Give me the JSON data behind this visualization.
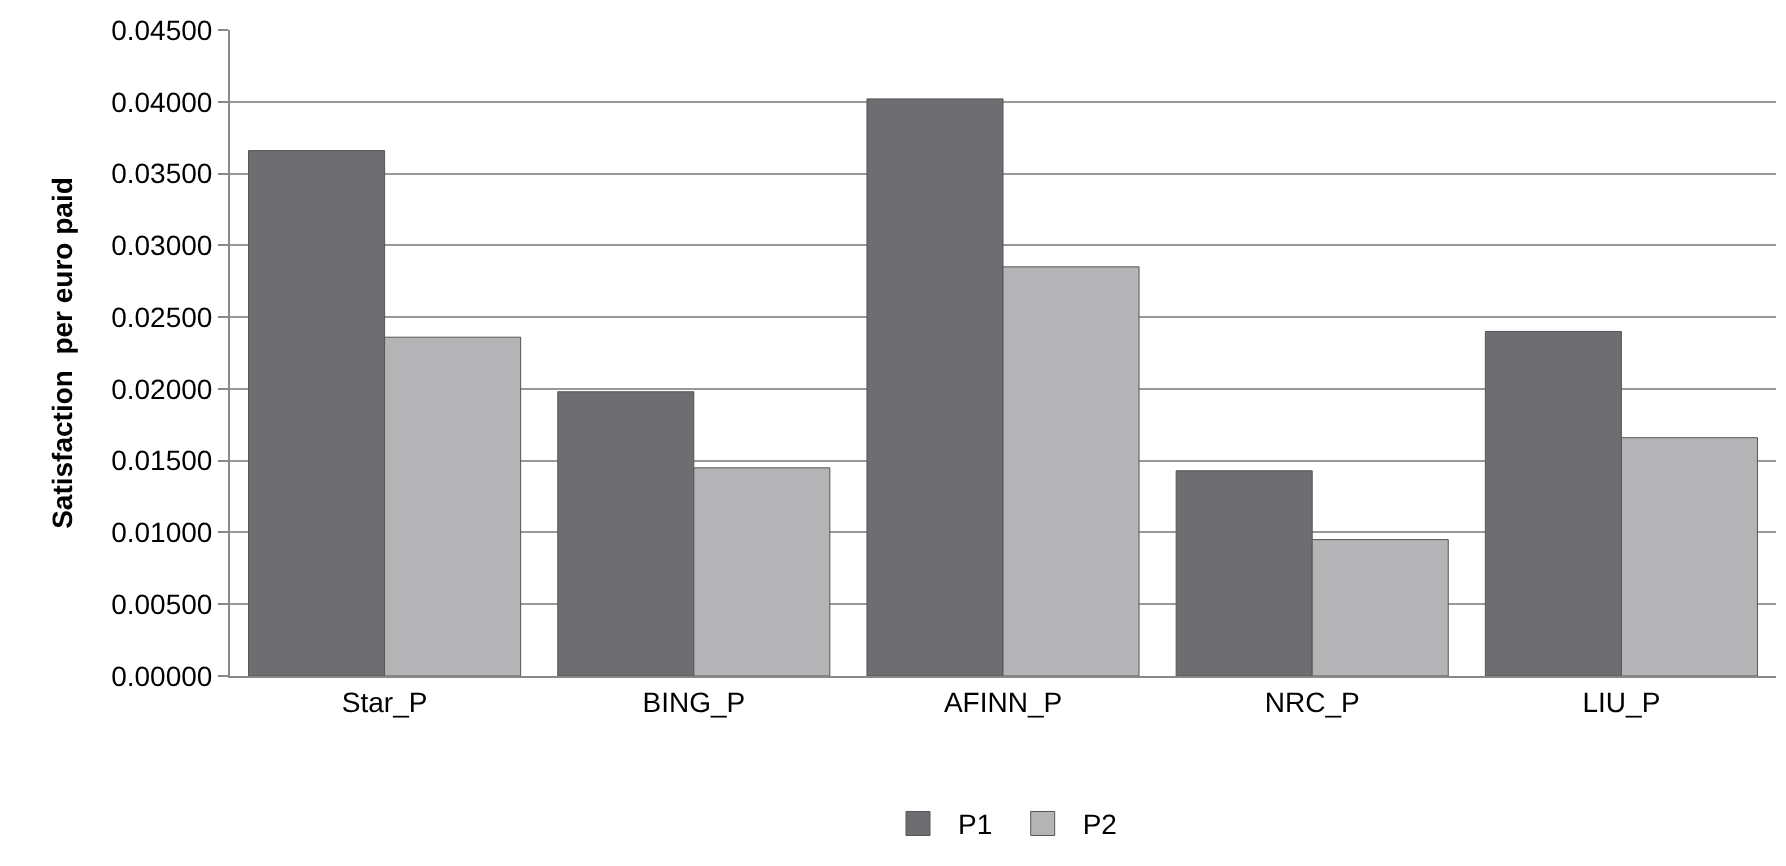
{
  "chart_data": {
    "type": "bar",
    "ylabel": "Satisfaction  per euro paid",
    "categories": [
      "Star_P",
      "BING_P",
      "AFINN_P",
      "NRC_P",
      "LIU_P"
    ],
    "series": [
      {
        "name": "P1",
        "color": "#6e6e72",
        "values": [
          0.0366,
          0.0198,
          0.0402,
          0.0143,
          0.024
        ]
      },
      {
        "name": "P2",
        "color": "#b4b4b6",
        "values": [
          0.0236,
          0.0145,
          0.0285,
          0.0095,
          0.0166
        ]
      }
    ],
    "ylim": [
      0,
      0.045
    ],
    "yticks": [
      {
        "value": 0,
        "label": "0.00000"
      },
      {
        "value": 0.005,
        "label": "0.00500"
      },
      {
        "value": 0.01,
        "label": "0.01000"
      },
      {
        "value": 0.015,
        "label": "0.01500"
      },
      {
        "value": 0.02,
        "label": "0.02000"
      },
      {
        "value": 0.025,
        "label": "0.02500"
      },
      {
        "value": 0.03,
        "label": "0.03000"
      },
      {
        "value": 0.035,
        "label": "0.03500"
      },
      {
        "value": 0.04,
        "label": "0.04000"
      },
      {
        "value": 0.045,
        "label": "0.04500"
      }
    ],
    "grid": "y",
    "legend": "bottom"
  }
}
